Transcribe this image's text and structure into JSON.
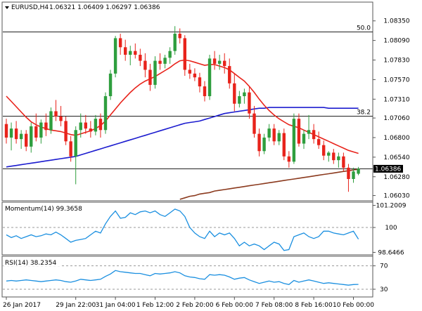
{
  "header": {
    "symbol": "EURUSD,H4",
    "ohlc": "1.06321 1.06409 1.06297 1.06386",
    "menu_icon": "triangle-down-icon"
  },
  "colors": {
    "bull": "#2e9e3e",
    "bear": "#e8231b",
    "ma_fast": "#e8231b",
    "ma_mid": "#1c1ccf",
    "ma_slow": "#8b3a1e",
    "indicator": "#1a8fe0",
    "level": "#222222",
    "current_price_box": "#000000"
  },
  "chart_data": [
    {
      "type": "candlestick",
      "name": "price",
      "ylim": [
        1.0597,
        1.0859
      ],
      "y_ticks": [
        "1.08350",
        "1.08090",
        "1.07830",
        "1.07570",
        "1.07310",
        "1.07060",
        "1.06800",
        "1.06540",
        "1.06280",
        "1.06030"
      ],
      "y_tick_values": [
        1.0835,
        1.0809,
        1.0783,
        1.0757,
        1.0731,
        1.0706,
        1.068,
        1.0654,
        1.0628,
        1.0603
      ],
      "x_ticks": [
        "26 Jan 2017",
        "29 Jan 22:00",
        "31 Jan 04:00",
        "1 Feb 12:00",
        "2 Feb 20:00",
        "6 Feb 00:00",
        "7 Feb 08:00",
        "8 Feb 16:00",
        "10 Feb 00:00"
      ],
      "x_tick_index": [
        0,
        14,
        22,
        30,
        38,
        46,
        54,
        62,
        70
      ],
      "current_price": 1.06386,
      "current_price_label": "1.06386",
      "levels": [
        {
          "label": "50.0",
          "value": 1.0821
        },
        {
          "label": "38.2",
          "value": 1.0709
        },
        {
          "label": "",
          "value": 1.06386
        }
      ],
      "candles": [
        [
          1.0698,
          1.0705,
          1.0672,
          1.068
        ],
        [
          1.068,
          1.07,
          1.0663,
          1.0692
        ],
        [
          1.0692,
          1.0702,
          1.0672,
          1.0678
        ],
        [
          1.0678,
          1.069,
          1.0665,
          1.0685
        ],
        [
          1.0685,
          1.069,
          1.0662,
          1.0668
        ],
        [
          1.0668,
          1.07,
          1.066,
          1.0695
        ],
        [
          1.0695,
          1.0712,
          1.0675,
          1.068
        ],
        [
          1.068,
          1.0704,
          1.0672,
          1.07
        ],
        [
          1.07,
          1.0712,
          1.0682,
          1.069
        ],
        [
          1.069,
          1.072,
          1.0685,
          1.0715
        ],
        [
          1.0715,
          1.073,
          1.0702,
          1.0708
        ],
        [
          1.0708,
          1.0722,
          1.0695,
          1.0702
        ],
        [
          1.0702,
          1.0708,
          1.067,
          1.0675
        ],
        [
          1.0675,
          1.0682,
          1.0648,
          1.0655
        ],
        [
          1.0655,
          1.0695,
          1.0618,
          1.069
        ],
        [
          1.069,
          1.0712,
          1.068,
          1.07
        ],
        [
          1.07,
          1.071,
          1.0685,
          1.0692
        ],
        [
          1.0692,
          1.0702,
          1.068,
          1.0688
        ],
        [
          1.0688,
          1.071,
          1.0683,
          1.0705
        ],
        [
          1.0705,
          1.0712,
          1.068,
          1.069
        ],
        [
          1.069,
          1.074,
          1.0685,
          1.0735
        ],
        [
          1.0735,
          1.077,
          1.073,
          1.0765
        ],
        [
          1.0765,
          1.0815,
          1.076,
          1.0812
        ],
        [
          1.0812,
          1.0818,
          1.079,
          1.08
        ],
        [
          1.08,
          1.081,
          1.0782,
          1.079
        ],
        [
          1.079,
          1.0802,
          1.0776,
          1.0795
        ],
        [
          1.0795,
          1.0805,
          1.0785,
          1.079
        ],
        [
          1.079,
          1.0798,
          1.0775,
          1.0782
        ],
        [
          1.0782,
          1.0792,
          1.076,
          1.077
        ],
        [
          1.077,
          1.0778,
          1.0742,
          1.075
        ],
        [
          1.075,
          1.0788,
          1.0745,
          1.0782
        ],
        [
          1.0782,
          1.0792,
          1.077,
          1.0778
        ],
        [
          1.0778,
          1.079,
          1.0772,
          1.0786
        ],
        [
          1.0786,
          1.08,
          1.0778,
          1.0795
        ],
        [
          1.0795,
          1.0828,
          1.079,
          1.0818
        ],
        [
          1.0818,
          1.0825,
          1.0805,
          1.0812
        ],
        [
          1.0812,
          1.0816,
          1.0762,
          1.077
        ],
        [
          1.077,
          1.0778,
          1.0758,
          1.0765
        ],
        [
          1.0765,
          1.0772,
          1.0755,
          1.076
        ],
        [
          1.076,
          1.0766,
          1.074,
          1.0748
        ],
        [
          1.0748,
          1.0755,
          1.0728,
          1.0735
        ],
        [
          1.0735,
          1.079,
          1.073,
          1.0785
        ],
        [
          1.0785,
          1.0795,
          1.077,
          1.0778
        ],
        [
          1.0778,
          1.079,
          1.077,
          1.0782
        ],
        [
          1.0782,
          1.0792,
          1.0765,
          1.0775
        ],
        [
          1.0775,
          1.0785,
          1.0745,
          1.0752
        ],
        [
          1.0752,
          1.0765,
          1.0715,
          1.0725
        ],
        [
          1.0725,
          1.0742,
          1.072,
          1.0735
        ],
        [
          1.0735,
          1.0745,
          1.0725,
          1.074
        ],
        [
          1.074,
          1.0748,
          1.0705,
          1.0712
        ],
        [
          1.0712,
          1.0722,
          1.068,
          1.0685
        ],
        [
          1.0685,
          1.0692,
          1.0655,
          1.0662
        ],
        [
          1.0662,
          1.0685,
          1.0658,
          1.068
        ],
        [
          1.068,
          1.0698,
          1.0675,
          1.0692
        ],
        [
          1.0692,
          1.0698,
          1.067,
          1.0675
        ],
        [
          1.0675,
          1.069,
          1.067,
          1.0686
        ],
        [
          1.0686,
          1.0692,
          1.065,
          1.0655
        ],
        [
          1.0655,
          1.0662,
          1.064,
          1.0648
        ],
        [
          1.0648,
          1.0712,
          1.0645,
          1.0705
        ],
        [
          1.0705,
          1.0712,
          1.0668,
          1.0672
        ],
        [
          1.0672,
          1.069,
          1.0665,
          1.0685
        ],
        [
          1.0685,
          1.071,
          1.0678,
          1.069
        ],
        [
          1.069,
          1.0698,
          1.0672,
          1.0678
        ],
        [
          1.0678,
          1.0688,
          1.0665,
          1.067
        ],
        [
          1.067,
          1.0676,
          1.065,
          1.0656
        ],
        [
          1.0656,
          1.0662,
          1.0648,
          1.066
        ],
        [
          1.066,
          1.0665,
          1.0645,
          1.065
        ],
        [
          1.065,
          1.066,
          1.064,
          1.0655
        ],
        [
          1.0655,
          1.066,
          1.0635,
          1.064
        ],
        [
          1.064,
          1.0645,
          1.0608,
          1.0625
        ],
        [
          1.0625,
          1.064,
          1.062,
          1.0635
        ],
        [
          1.0632,
          1.0641,
          1.063,
          1.06386
        ]
      ],
      "ma_fast": [
        1.0735,
        1.0728,
        1.0721,
        1.0714,
        1.0707,
        1.0701,
        1.0697,
        1.0694,
        1.0692,
        1.069,
        1.0689,
        1.0688,
        1.0686,
        1.0684,
        1.0683,
        1.0685,
        1.0687,
        1.0689,
        1.0692,
        1.0696,
        1.0702,
        1.071,
        1.0718,
        1.0726,
        1.0733,
        1.074,
        1.0746,
        1.0751,
        1.0755,
        1.0758,
        1.0761,
        1.0765,
        1.0769,
        1.0773,
        1.0778,
        1.0782,
        1.0783,
        1.0782,
        1.078,
        1.0778,
        1.0776,
        1.0777,
        1.0777,
        1.0775,
        1.0773,
        1.077,
        1.0765,
        1.076,
        1.0755,
        1.0748,
        1.074,
        1.0731,
        1.0723,
        1.0716,
        1.071,
        1.0705,
        1.0701,
        1.0697,
        1.0695,
        1.0693,
        1.069,
        1.0687,
        1.0684,
        1.0681,
        1.0678,
        1.0675,
        1.0672,
        1.0669,
        1.0666,
        1.0663,
        1.0661,
        1.0659
      ],
      "ma_mid": [
        1.0641,
        1.0642,
        1.0643,
        1.0644,
        1.0645,
        1.0646,
        1.0647,
        1.0648,
        1.0649,
        1.065,
        1.0651,
        1.0652,
        1.0653,
        1.0654,
        1.0655,
        1.0657,
        1.0659,
        1.0661,
        1.0663,
        1.0665,
        1.0667,
        1.0669,
        1.0671,
        1.0673,
        1.0675,
        1.0677,
        1.0679,
        1.0681,
        1.0683,
        1.0685,
        1.0687,
        1.0689,
        1.0691,
        1.0693,
        1.0695,
        1.0697,
        1.0699,
        1.07,
        1.0701,
        1.0702,
        1.0704,
        1.0706,
        1.0708,
        1.071,
        1.0712,
        1.0713,
        1.0714,
        1.0715,
        1.0716,
        1.0717,
        1.0718,
        1.0719,
        1.0719,
        1.072,
        1.072,
        1.072,
        1.072,
        1.072,
        1.072,
        1.072,
        1.072,
        1.072,
        1.072,
        1.072,
        1.072,
        1.0719,
        1.0719,
        1.0719,
        1.0719,
        1.0719,
        1.0719,
        1.0719
      ],
      "ma_slow_start": 35,
      "ma_slow": [
        1.0598,
        1.06,
        1.0602,
        1.0603,
        1.0605,
        1.0606,
        1.0607,
        1.0609,
        1.061,
        1.0611,
        1.0612,
        1.0613,
        1.0614,
        1.0615,
        1.0616,
        1.0617,
        1.0618,
        1.0619,
        1.062,
        1.0621,
        1.0622,
        1.0623,
        1.0624,
        1.0625,
        1.0626,
        1.0627,
        1.0628,
        1.0629,
        1.063,
        1.0631,
        1.0632,
        1.0633,
        1.0634,
        1.0635,
        1.0636,
        1.0637,
        1.0638
      ]
    },
    {
      "type": "line",
      "name": "momentum",
      "label": "Momentum(14) 99.3658",
      "ylim": [
        98.55,
        101.3
      ],
      "y_ticks": [
        "101.2009",
        "100",
        "98.6466"
      ],
      "y_tick_values": [
        101.2009,
        100,
        98.6466
      ],
      "reference": 100,
      "values": [
        99.6,
        99.45,
        99.55,
        99.4,
        99.5,
        99.6,
        99.5,
        99.55,
        99.65,
        99.6,
        99.75,
        99.6,
        99.4,
        99.2,
        99.3,
        99.35,
        99.4,
        99.6,
        99.8,
        99.7,
        100.2,
        100.6,
        100.9,
        100.5,
        100.55,
        100.8,
        100.7,
        100.85,
        100.9,
        100.8,
        100.9,
        100.7,
        100.6,
        100.8,
        101.0,
        100.9,
        100.6,
        100.0,
        99.7,
        99.5,
        99.4,
        99.8,
        99.5,
        99.7,
        99.6,
        99.7,
        99.4,
        99.0,
        99.2,
        99.0,
        99.1,
        99.0,
        98.8,
        99.0,
        99.2,
        99.1,
        98.75,
        98.8,
        99.5,
        99.6,
        99.7,
        99.5,
        99.4,
        99.5,
        99.8,
        99.8,
        99.7,
        99.65,
        99.6,
        99.7,
        99.8,
        99.3658
      ]
    },
    {
      "type": "line",
      "name": "rsi",
      "label": "RSI(14) 38.2354",
      "ylim": [
        18,
        84
      ],
      "y_ticks": [
        "70",
        "30"
      ],
      "y_tick_values": [
        70,
        30
      ],
      "levels": [
        70,
        30
      ],
      "values": [
        44,
        45,
        44,
        45,
        46,
        45,
        44,
        43,
        44,
        45,
        46,
        45,
        43,
        42,
        44,
        47,
        46,
        45,
        46,
        47,
        52,
        56,
        62,
        60,
        59,
        58,
        57,
        57,
        55,
        53,
        57,
        56,
        57,
        58,
        60,
        58,
        53,
        51,
        50,
        48,
        47,
        55,
        54,
        55,
        54,
        51,
        47,
        49,
        50,
        46,
        43,
        40,
        42,
        44,
        42,
        43,
        40,
        38,
        45,
        42,
        44,
        46,
        44,
        42,
        40,
        41,
        40,
        39,
        38,
        37,
        38,
        38.2354
      ]
    }
  ]
}
